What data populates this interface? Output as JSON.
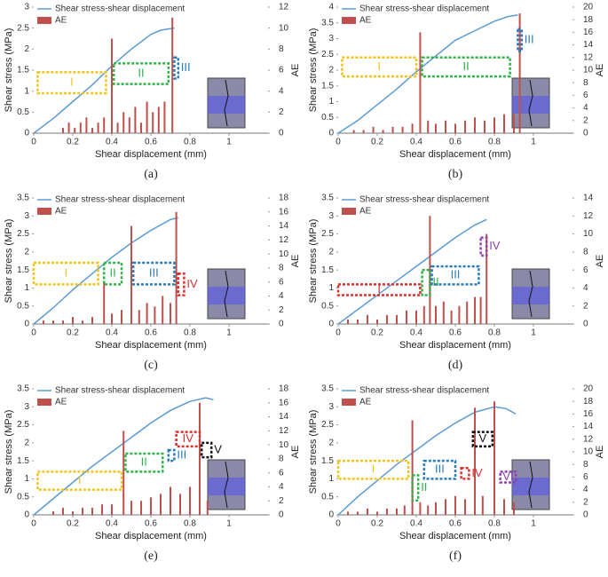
{
  "chart_data": [
    {
      "type": "combo",
      "caption": "(a)",
      "x_label": "Shear displacement (mm)",
      "y_label": "Shear stress (MPa)",
      "y2_label": "AE",
      "xlim": [
        0,
        1.2
      ],
      "xticks": [
        0,
        0.2,
        0.4,
        0.6,
        0.8,
        1
      ],
      "ylim": [
        0,
        3
      ],
      "yticks": [
        0,
        0.5,
        1,
        1.5,
        2,
        2.5,
        3
      ],
      "y2lim": [
        0,
        12
      ],
      "y2ticks": [
        0,
        2,
        4,
        6,
        8,
        10,
        12
      ],
      "series": [
        {
          "name": "Shear stress-shear displacement",
          "color": "#5b9bd5",
          "x": [
            0,
            0.1,
            0.2,
            0.3,
            0.4,
            0.5,
            0.6,
            0.65,
            0.72
          ],
          "values": [
            0,
            0.35,
            0.75,
            1.15,
            1.6,
            2.0,
            2.35,
            2.45,
            2.5
          ]
        },
        {
          "name": "AE",
          "color": "#c0504d",
          "axis": "y2",
          "x": [
            0.15,
            0.18,
            0.21,
            0.24,
            0.27,
            0.3,
            0.33,
            0.36,
            0.4,
            0.43,
            0.46,
            0.49,
            0.52,
            0.55,
            0.58,
            0.61,
            0.64,
            0.67,
            0.71
          ],
          "values": [
            0.5,
            1,
            0.5,
            1,
            1.5,
            0.5,
            1,
            1.5,
            9,
            1,
            2,
            1.5,
            2.5,
            1,
            3,
            2,
            2.5,
            3,
            11
          ]
        }
      ],
      "stages": [
        {
          "label": "I",
          "color": "#f0c419",
          "x": [
            0.02,
            0.37
          ],
          "y": [
            0.95,
            1.45
          ]
        },
        {
          "label": "II",
          "color": "#2eb34a",
          "x": [
            0.41,
            0.69
          ],
          "y": [
            1.17,
            1.66
          ]
        },
        {
          "label": "III",
          "color": "#2a7ab8",
          "x": [
            0.72,
            0.74
          ],
          "y": [
            1.3,
            1.8
          ]
        }
      ]
    },
    {
      "type": "combo",
      "caption": "(b)",
      "x_label": "Shear displacement (mm)",
      "y_label": "Shear stress (MPa)",
      "y2_label": "AE",
      "xlim": [
        0,
        1.2
      ],
      "xticks": [
        0,
        0.2,
        0.4,
        0.6,
        0.8,
        1
      ],
      "ylim": [
        0,
        4
      ],
      "yticks": [
        0,
        0.5,
        1,
        1.5,
        2,
        2.5,
        3,
        3.5,
        4
      ],
      "y2lim": [
        0,
        20
      ],
      "y2ticks": [
        0,
        2,
        4,
        6,
        8,
        10,
        12,
        14,
        16,
        18,
        20
      ],
      "series": [
        {
          "name": "Shear stress-shear displacement",
          "color": "#5b9bd5",
          "x": [
            0,
            0.1,
            0.2,
            0.3,
            0.4,
            0.5,
            0.6,
            0.7,
            0.8,
            0.87,
            0.92
          ],
          "values": [
            0,
            0.4,
            0.9,
            1.4,
            1.95,
            2.45,
            2.95,
            3.25,
            3.55,
            3.7,
            3.75
          ]
        },
        {
          "name": "AE",
          "color": "#c0504d",
          "axis": "y2",
          "x": [
            0.08,
            0.13,
            0.18,
            0.23,
            0.28,
            0.33,
            0.38,
            0.42,
            0.46,
            0.5,
            0.55,
            0.6,
            0.65,
            0.7,
            0.75,
            0.8,
            0.85,
            0.9,
            0.93
          ],
          "values": [
            0.5,
            0.5,
            1,
            0.5,
            1,
            1,
            1.5,
            16,
            2,
            1.5,
            2,
            1.5,
            2,
            2.5,
            2,
            2.5,
            3,
            3,
            19
          ]
        }
      ],
      "stages": [
        {
          "label": "I",
          "color": "#f0c419",
          "x": [
            0.02,
            0.4
          ],
          "y": [
            1.8,
            2.4
          ]
        },
        {
          "label": "II",
          "color": "#2eb34a",
          "x": [
            0.43,
            0.88
          ],
          "y": [
            1.8,
            2.4
          ]
        },
        {
          "label": "III",
          "color": "#2a7ab8",
          "x": [
            0.92,
            0.94
          ],
          "y": [
            2.6,
            3.3
          ]
        }
      ]
    },
    {
      "type": "combo",
      "caption": "(c)",
      "x_label": "Shear displacement (mm)",
      "y_label": "Shear stress (MPa)",
      "y2_label": "AE",
      "xlim": [
        0,
        1.2
      ],
      "xticks": [
        0,
        0.2,
        0.4,
        0.6,
        0.8,
        1
      ],
      "ylim": [
        0,
        3.5
      ],
      "yticks": [
        0,
        0.5,
        1,
        1.5,
        2,
        2.5,
        3,
        3.5
      ],
      "y2lim": [
        0,
        18
      ],
      "y2ticks": [
        0,
        2,
        4,
        6,
        8,
        10,
        12,
        14,
        16,
        18
      ],
      "series": [
        {
          "name": "Shear stress-shear displacement",
          "color": "#5b9bd5",
          "x": [
            0,
            0.1,
            0.2,
            0.3,
            0.4,
            0.5,
            0.6,
            0.7,
            0.74
          ],
          "values": [
            0,
            0.45,
            0.95,
            1.4,
            1.85,
            2.25,
            2.6,
            2.9,
            2.95
          ]
        },
        {
          "name": "AE",
          "color": "#c0504d",
          "axis": "y2",
          "x": [
            0.05,
            0.1,
            0.15,
            0.2,
            0.25,
            0.3,
            0.36,
            0.4,
            0.45,
            0.5,
            0.54,
            0.58,
            0.62,
            0.66,
            0.7,
            0.73
          ],
          "values": [
            0.5,
            0.5,
            0.5,
            1,
            0.5,
            1,
            6,
            1.5,
            2,
            14,
            2,
            3,
            2.5,
            4,
            3,
            16
          ]
        }
      ],
      "stages": [
        {
          "label": "I",
          "color": "#f0c419",
          "x": [
            0.0,
            0.33
          ],
          "y": [
            1.1,
            1.7
          ]
        },
        {
          "label": "II",
          "color": "#2eb34a",
          "x": [
            0.36,
            0.45
          ],
          "y": [
            1.1,
            1.7
          ]
        },
        {
          "label": "III",
          "color": "#2a7ab8",
          "x": [
            0.51,
            0.72
          ],
          "y": [
            1.1,
            1.7
          ]
        },
        {
          "label": "IV",
          "color": "#d93030",
          "x": [
            0.74,
            0.77
          ],
          "y": [
            0.8,
            1.4
          ]
        }
      ]
    },
    {
      "type": "combo",
      "caption": "(d)",
      "x_label": "Shear displacement (mm)",
      "y_label": "Shear stress (MPa)",
      "y2_label": "AE",
      "xlim": [
        0,
        1.2
      ],
      "xticks": [
        0,
        0.2,
        0.4,
        0.6,
        0.8,
        1
      ],
      "ylim": [
        0,
        3.5
      ],
      "yticks": [
        0,
        0.5,
        1,
        1.5,
        2,
        2.5,
        3,
        3.5
      ],
      "y2lim": [
        0,
        14
      ],
      "y2ticks": [
        0,
        2,
        4,
        6,
        8,
        10,
        12,
        14
      ],
      "series": [
        {
          "name": "Shear stress-shear displacement",
          "color": "#5b9bd5",
          "x": [
            0,
            0.1,
            0.2,
            0.3,
            0.4,
            0.5,
            0.6,
            0.7,
            0.76
          ],
          "values": [
            0,
            0.4,
            0.8,
            1.2,
            1.6,
            2.0,
            2.4,
            2.75,
            2.9
          ]
        },
        {
          "name": "AE",
          "color": "#c0504d",
          "axis": "y2",
          "x": [
            0.05,
            0.1,
            0.15,
            0.2,
            0.25,
            0.3,
            0.35,
            0.4,
            0.44,
            0.47,
            0.5,
            0.54,
            0.58,
            0.62,
            0.66,
            0.7,
            0.73,
            0.76
          ],
          "values": [
            0.5,
            0.5,
            1,
            0.5,
            1,
            1,
            1.5,
            1.5,
            2,
            12,
            2,
            2.5,
            1.5,
            2,
            2.5,
            3,
            3,
            10
          ]
        }
      ],
      "stages": [
        {
          "label": "I",
          "color": "#d93030",
          "x": [
            0.0,
            0.42
          ],
          "y": [
            0.8,
            1.1
          ]
        },
        {
          "label": "II",
          "color": "#2eb34a",
          "x": [
            0.43,
            0.47
          ],
          "y": [
            0.8,
            1.5
          ]
        },
        {
          "label": "III",
          "color": "#2a7ab8",
          "x": [
            0.48,
            0.72
          ],
          "y": [
            1.1,
            1.6
          ]
        },
        {
          "label": "IV",
          "color": "#8e44ad",
          "x": [
            0.73,
            0.76
          ],
          "y": [
            1.9,
            2.4
          ]
        }
      ]
    },
    {
      "type": "combo",
      "caption": "(e)",
      "x_label": "Shear displacement (mm)",
      "y_label": "Shear stress (MPa)",
      "y2_label": "AE",
      "xlim": [
        0,
        1.2
      ],
      "xticks": [
        0,
        0.2,
        0.4,
        0.6,
        0.8,
        1
      ],
      "ylim": [
        0,
        3.5
      ],
      "yticks": [
        0,
        0.5,
        1,
        1.5,
        2,
        2.5,
        3,
        3.5
      ],
      "y2lim": [
        0,
        18
      ],
      "y2ticks": [
        0,
        2,
        4,
        6,
        8,
        10,
        12,
        14,
        16,
        18
      ],
      "series": [
        {
          "name": "Shear stress-shear displacement",
          "color": "#5b9bd5",
          "x": [
            0,
            0.1,
            0.2,
            0.3,
            0.4,
            0.5,
            0.6,
            0.7,
            0.8,
            0.88,
            0.92
          ],
          "values": [
            0,
            0.45,
            0.9,
            1.35,
            1.75,
            2.15,
            2.55,
            2.9,
            3.15,
            3.25,
            3.2
          ]
        },
        {
          "name": "AE",
          "color": "#c0504d",
          "axis": "y2",
          "x": [
            0.1,
            0.15,
            0.2,
            0.25,
            0.3,
            0.35,
            0.4,
            0.46,
            0.5,
            0.55,
            0.6,
            0.65,
            0.7,
            0.75,
            0.8,
            0.85,
            0.89
          ],
          "values": [
            0.5,
            1,
            0.5,
            1,
            1,
            1.5,
            1.5,
            12,
            2,
            2,
            2.5,
            3,
            4,
            3,
            4,
            16,
            2
          ]
        }
      ],
      "stages": [
        {
          "label": "I",
          "color": "#f0c419",
          "x": [
            0.02,
            0.45
          ],
          "y": [
            0.7,
            1.2
          ]
        },
        {
          "label": "II",
          "color": "#2eb34a",
          "x": [
            0.47,
            0.66
          ],
          "y": [
            1.2,
            1.7
          ]
        },
        {
          "label": "III",
          "color": "#2a7ab8",
          "x": [
            0.69,
            0.72
          ],
          "y": [
            1.5,
            1.8
          ]
        },
        {
          "label": "IV",
          "color": "#d93030",
          "x": [
            0.73,
            0.85
          ],
          "y": [
            1.9,
            2.3
          ]
        },
        {
          "label": "V",
          "color": "#111111",
          "x": [
            0.86,
            0.91
          ],
          "y": [
            1.6,
            2.0
          ]
        }
      ]
    },
    {
      "type": "combo",
      "caption": "(f)",
      "x_label": "Shear displacement (mm)",
      "y_label": "Shear stress (MPa)",
      "y2_label": "AE",
      "xlim": [
        0,
        1.2
      ],
      "xticks": [
        0,
        0.2,
        0.4,
        0.6,
        0.8,
        1
      ],
      "ylim": [
        0,
        3.5
      ],
      "yticks": [
        0,
        0.5,
        1,
        1.5,
        2,
        2.5,
        3,
        3.5
      ],
      "y2lim": [
        0,
        20
      ],
      "y2ticks": [
        0,
        2,
        4,
        6,
        8,
        10,
        12,
        14,
        16,
        18,
        20
      ],
      "series": [
        {
          "name": "Shear stress-shear displacement",
          "color": "#5b9bd5",
          "x": [
            0,
            0.1,
            0.2,
            0.3,
            0.4,
            0.5,
            0.6,
            0.7,
            0.8,
            0.86,
            0.91
          ],
          "values": [
            0,
            0.5,
            0.95,
            1.4,
            1.8,
            2.2,
            2.55,
            2.85,
            3.0,
            2.95,
            2.8
          ]
        },
        {
          "name": "AE",
          "color": "#c0504d",
          "axis": "y2",
          "x": [
            0.05,
            0.1,
            0.15,
            0.2,
            0.25,
            0.3,
            0.34,
            0.38,
            0.42,
            0.46,
            0.5,
            0.55,
            0.6,
            0.65,
            0.7,
            0.74,
            0.8,
            0.85,
            0.9
          ],
          "values": [
            0.5,
            0.5,
            1,
            0.5,
            1,
            1,
            1.5,
            15,
            2,
            1.5,
            2,
            2.5,
            3,
            2.5,
            17,
            3,
            18,
            2.5,
            2
          ]
        }
      ],
      "stages": [
        {
          "label": "I",
          "color": "#f0c419",
          "x": [
            0.0,
            0.36
          ],
          "y": [
            1.0,
            1.5
          ]
        },
        {
          "label": "II",
          "color": "#2eb34a",
          "x": [
            0.38,
            0.41
          ],
          "y": [
            0.4,
            1.1
          ]
        },
        {
          "label": "III",
          "color": "#2a7ab8",
          "x": [
            0.44,
            0.6
          ],
          "y": [
            1.0,
            1.5
          ]
        },
        {
          "label": "IV",
          "color": "#d93030",
          "x": [
            0.63,
            0.67
          ],
          "y": [
            1.0,
            1.3
          ]
        },
        {
          "label": "V",
          "color": "#111111",
          "x": [
            0.69,
            0.79
          ],
          "y": [
            1.9,
            2.3
          ]
        },
        {
          "label": "VI",
          "color": "#8e44ad",
          "x": [
            0.83,
            0.91
          ],
          "y": [
            0.9,
            1.2
          ]
        }
      ]
    }
  ]
}
